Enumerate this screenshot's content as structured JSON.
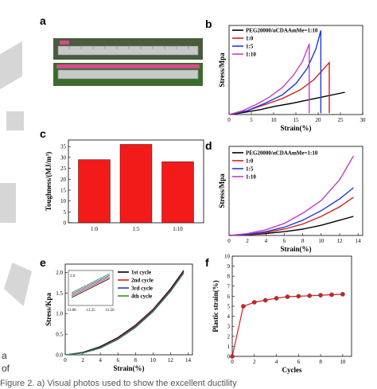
{
  "labels": {
    "a": "a",
    "b": "b",
    "c": "c",
    "d": "d",
    "e": "e",
    "f": "f"
  },
  "caption": "Figure 2. a) Visual photos used to show the excellent ductility",
  "margin": {
    "line1": "a",
    "line2": "of"
  },
  "colors": {
    "black": "#000000",
    "red": "#d42020",
    "blue": "#1f3bd6",
    "magenta": "#c53cc5",
    "bar": "#f31a1a"
  },
  "chart_data": [
    {
      "panel": "b",
      "type": "line",
      "xlabel": "Strain(%)",
      "ylabel": "Stress/Mpa",
      "xticks": [
        "0",
        "5",
        "10",
        "15",
        "20",
        "25",
        "30"
      ],
      "xlim": [
        0,
        30
      ],
      "ylim": [
        0,
        7.2
      ],
      "series": [
        {
          "name": "PEG20000/αCDAAmMe=1:10",
          "color": "#000000",
          "x": [
            0,
            3,
            7,
            10,
            14,
            18,
            22,
            26
          ],
          "y": [
            0,
            0.15,
            0.4,
            0.65,
            0.9,
            1.2,
            1.5,
            1.8
          ]
        },
        {
          "name": "1:0",
          "color": "#d42020",
          "x": [
            0,
            4,
            8,
            12,
            16,
            19,
            21,
            22.5,
            22.5
          ],
          "y": [
            0,
            0.3,
            0.8,
            1.3,
            2.0,
            2.8,
            3.6,
            4.2,
            0.1
          ]
        },
        {
          "name": "1:5",
          "color": "#1f3bd6",
          "x": [
            0,
            4,
            8,
            12,
            15,
            17.5,
            19.5,
            20.6,
            20.6
          ],
          "y": [
            0,
            0.3,
            0.9,
            1.6,
            2.5,
            3.7,
            5.3,
            6.8,
            0.1
          ]
        },
        {
          "name": "1:10",
          "color": "#c53cc5",
          "x": [
            0,
            3,
            6,
            9,
            12,
            14.5,
            16.5,
            18,
            18
          ],
          "y": [
            0,
            0.3,
            0.8,
            1.4,
            2.2,
            3.2,
            4.3,
            5.7,
            0.1
          ]
        }
      ]
    },
    {
      "panel": "c",
      "type": "bar",
      "ylabel": "Toughness/(MJ/m³)",
      "categories": [
        "1:0",
        "1:5",
        "1:10"
      ],
      "values": [
        29,
        36,
        28
      ],
      "yticks": [
        "0",
        "5",
        "10",
        "15",
        "20",
        "25",
        "30",
        "35"
      ],
      "ylim": [
        0,
        38
      ],
      "color": "#f31a1a"
    },
    {
      "panel": "d",
      "type": "line",
      "xlabel": "Strain(%)",
      "ylabel": "Stress/Mpa",
      "xticks": [
        "0",
        "2",
        "4",
        "6",
        "8",
        "10",
        "12",
        "14"
      ],
      "xlim": [
        0,
        14.5
      ],
      "ylim": [
        0,
        2.8
      ],
      "series": [
        {
          "name": "PEG20000/αCDAAmMe=1:10",
          "color": "#000000",
          "x": [
            0,
            2,
            4,
            6,
            8,
            10,
            12,
            13.5
          ],
          "y": [
            0,
            0.02,
            0.06,
            0.12,
            0.2,
            0.32,
            0.48,
            0.6
          ]
        },
        {
          "name": "1:0",
          "color": "#d42020",
          "x": [
            0,
            2,
            4,
            6,
            8,
            10,
            12,
            13.5
          ],
          "y": [
            0,
            0.03,
            0.09,
            0.2,
            0.36,
            0.6,
            0.9,
            1.2
          ]
        },
        {
          "name": "1:5",
          "color": "#1f3bd6",
          "x": [
            0,
            2,
            4,
            6,
            8,
            10,
            12,
            13.5
          ],
          "y": [
            0,
            0.04,
            0.12,
            0.26,
            0.48,
            0.78,
            1.15,
            1.5
          ]
        },
        {
          "name": "1:10",
          "color": "#c53cc5",
          "x": [
            0,
            2,
            4,
            6,
            8,
            10,
            12,
            13.5
          ],
          "y": [
            0,
            0.06,
            0.18,
            0.38,
            0.7,
            1.1,
            1.75,
            2.5
          ]
        }
      ]
    },
    {
      "panel": "e",
      "type": "line",
      "xlabel": "Strain(%)",
      "ylabel": "Stress/Kpa",
      "xticks": [
        "0",
        "2",
        "4",
        "6",
        "8",
        "10",
        "12",
        "14"
      ],
      "yticks": [
        "0.0",
        "0.5",
        "1.0",
        "1.5",
        "2.0"
      ],
      "xlim": [
        0,
        14.5
      ],
      "ylim": [
        0,
        2.2
      ],
      "series": [
        {
          "name": "1st cycle",
          "color": "#000000",
          "x": [
            0,
            2,
            4,
            6,
            8,
            10,
            12,
            13.5
          ],
          "y": [
            0,
            0.06,
            0.2,
            0.42,
            0.72,
            1.1,
            1.6,
            2.05
          ]
        },
        {
          "name": "2nd cycle",
          "color": "#d42020",
          "x": [
            0,
            2,
            4,
            6,
            8,
            10,
            12,
            13.5
          ],
          "y": [
            0,
            0.05,
            0.18,
            0.4,
            0.7,
            1.08,
            1.57,
            2.02
          ]
        },
        {
          "name": "3rd cycle",
          "color": "#1f3bd6",
          "x": [
            0,
            2,
            4,
            6,
            8,
            10,
            12,
            13.5
          ],
          "y": [
            0,
            0.05,
            0.17,
            0.38,
            0.68,
            1.06,
            1.55,
            2.0
          ]
        },
        {
          "name": "4th cycle",
          "color": "#2f8f2f",
          "x": [
            0,
            2,
            4,
            6,
            8,
            10,
            12,
            13.5
          ],
          "y": [
            0,
            0.04,
            0.16,
            0.37,
            0.66,
            1.04,
            1.53,
            1.98
          ]
        }
      ],
      "inset": {
        "xticks": [
          "13.00",
          "13.25",
          "13.50"
        ],
        "ytick": "2.0"
      }
    },
    {
      "panel": "f",
      "type": "line",
      "xlabel": "Cycles",
      "ylabel": "Plastic strain(%)",
      "xticks": [
        "0",
        "2",
        "4",
        "6",
        "8",
        "10"
      ],
      "yticks": [
        "0",
        "1",
        "2",
        "3",
        "4",
        "5",
        "6",
        "7",
        "8",
        "9",
        "10"
      ],
      "xlim": [
        0,
        10.8
      ],
      "ylim": [
        0,
        10
      ],
      "series": [
        {
          "name": "",
          "color": "#d42020",
          "x": [
            0,
            1,
            2,
            3,
            4,
            5,
            6,
            7,
            8,
            9,
            10
          ],
          "y": [
            0,
            5.0,
            5.4,
            5.6,
            5.8,
            5.95,
            6.0,
            6.05,
            6.1,
            6.15,
            6.2
          ]
        }
      ]
    }
  ]
}
